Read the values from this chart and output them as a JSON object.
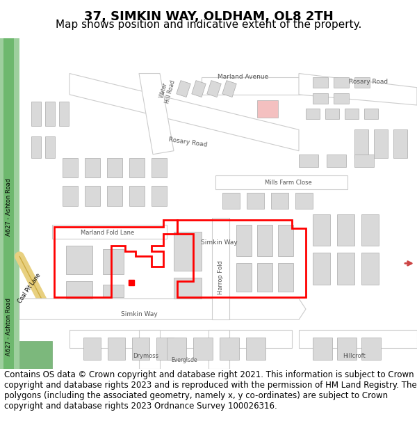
{
  "title": "37, SIMKIN WAY, OLDHAM, OL8 2TH",
  "subtitle": "Map shows position and indicative extent of the property.",
  "copyright_text": "Contains OS data © Crown copyright and database right 2021. This information is subject to Crown copyright and database rights 2023 and is reproduced with the permission of HM Land Registry. The polygons (including the associated geometry, namely x, y co-ordinates) are subject to Crown copyright and database rights 2023 Ordnance Survey 100026316.",
  "title_fontsize": 13,
  "subtitle_fontsize": 11,
  "copyright_fontsize": 8.5,
  "map_bg_color": "#f5f3f0",
  "building_color": "#d9d9d9",
  "building_outline_color": "#aaaaaa",
  "red_outline_color": "#ff0000",
  "pink_building_color": "#f4c0c0"
}
